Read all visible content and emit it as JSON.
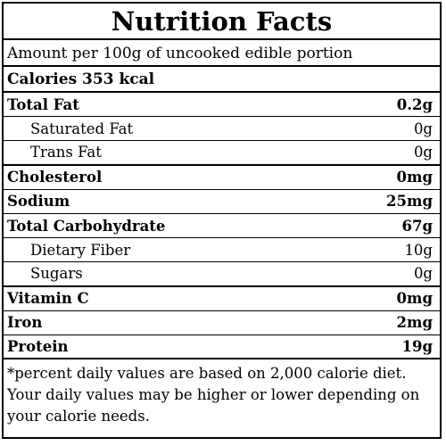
{
  "title": "Nutrition Facts",
  "serving": "Amount per 100g of uncooked edible portion",
  "calories": "Calories 353 kcal",
  "nutrients": [
    {
      "label": "Total Fat",
      "value": "0.2g",
      "bold": true,
      "indent": false,
      "thick": false
    },
    {
      "label": "Saturated Fat",
      "value": "0g",
      "bold": false,
      "indent": true,
      "thick": false
    },
    {
      "label": "Trans Fat",
      "value": "0g",
      "bold": false,
      "indent": true,
      "thick": true
    },
    {
      "label": "Cholesterol",
      "value": "0mg",
      "bold": true,
      "indent": false,
      "thick": false
    },
    {
      "label": "Sodium",
      "value": "25mg",
      "bold": true,
      "indent": false,
      "thick": false
    },
    {
      "label": "Total Carbohydrate",
      "value": "67g",
      "bold": true,
      "indent": false,
      "thick": false
    },
    {
      "label": "Dietary Fiber",
      "value": "10g",
      "bold": false,
      "indent": true,
      "thick": false
    },
    {
      "label": "Sugars",
      "value": "0g",
      "bold": false,
      "indent": true,
      "thick": true
    },
    {
      "label": "Vitamin C",
      "value": "0mg",
      "bold": true,
      "indent": false,
      "thick": false
    },
    {
      "label": "Iron",
      "value": "2mg",
      "bold": true,
      "indent": false,
      "thick": false
    },
    {
      "label": "Protein",
      "value": "19g",
      "bold": true,
      "indent": false,
      "thick": true
    }
  ],
  "footnote": "*percent daily values are based on 2,000 calorie diet. Your daily values may be higher or lower depending on your calorie needs."
}
